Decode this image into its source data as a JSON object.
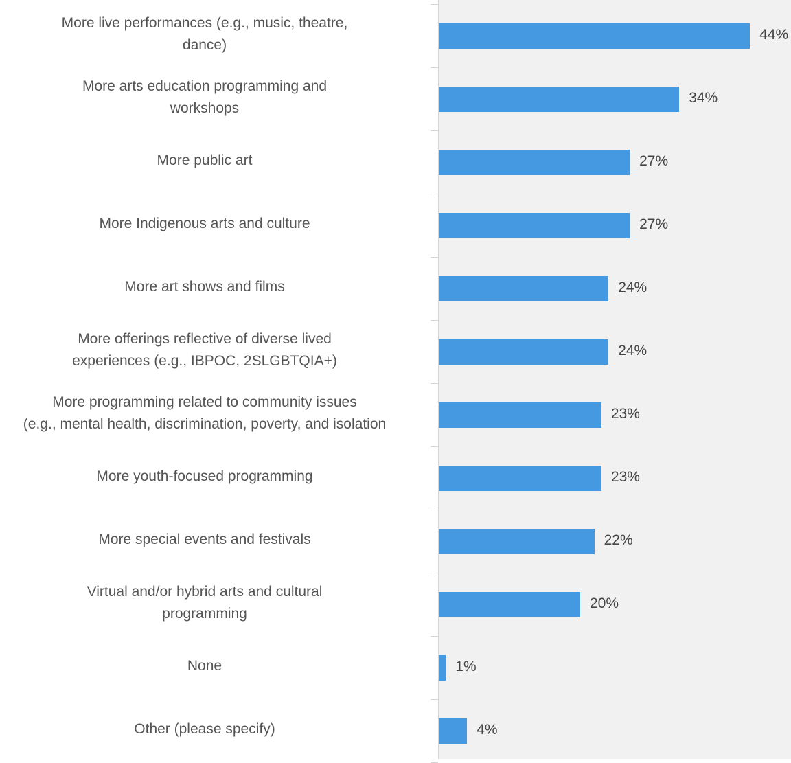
{
  "chart_data": {
    "type": "bar",
    "orientation": "horizontal",
    "categories": [
      [
        "More live performances (e.g., music, theatre,",
        "dance)"
      ],
      [
        "More arts education programming and",
        "workshops"
      ],
      [
        "More public art"
      ],
      [
        "More Indigenous arts and culture"
      ],
      [
        "More art shows and films"
      ],
      [
        "More offerings reflective of diverse lived",
        "experiences (e.g., IBPOC, 2SLGBTQIA+)"
      ],
      [
        "More programming related to community issues",
        "(e.g., mental health, discrimination, poverty, and isolation"
      ],
      [
        "More youth-focused programming"
      ],
      [
        "More special events and festivals"
      ],
      [
        "Virtual and/or hybrid arts and cultural",
        "programming"
      ],
      [
        "None"
      ],
      [
        "Other (please specify)"
      ]
    ],
    "values": [
      44,
      34,
      27,
      27,
      24,
      24,
      23,
      23,
      22,
      20,
      1,
      4
    ],
    "value_labels": [
      "44%",
      "34%",
      "27%",
      "27%",
      "24%",
      "24%",
      "23%",
      "23%",
      "22%",
      "20%",
      "1%",
      "4%"
    ],
    "xlim": [
      0,
      50
    ],
    "grid": false,
    "legend": "none",
    "colors": {
      "bar": "#4499e0",
      "plot_background": "#f1f1f1"
    }
  }
}
